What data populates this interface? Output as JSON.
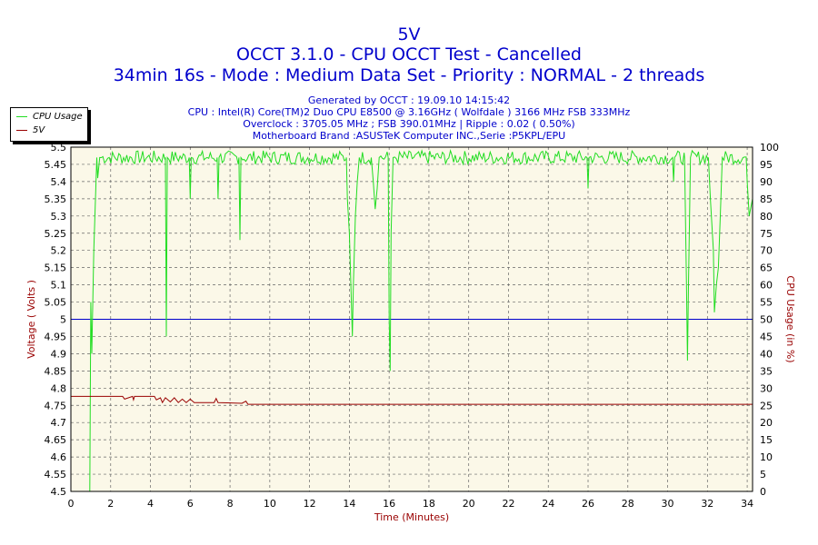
{
  "header": {
    "title": "5V",
    "subtitle": "OCCT 3.1.0 - CPU OCCT Test - Cancelled",
    "subtitle2": "34min 16s - Mode : Medium Data Set - Priority : NORMAL - 2 threads"
  },
  "info": {
    "line1": "Generated by OCCT : 19.09.10 14:15:42",
    "line2": "CPU : Intel(R) Core(TM)2 Duo CPU E8500 @ 3.16GHz ( Wolfdale ) 3166 MHz FSB 333MHz",
    "line3": "Overclock : 3705.05 MHz ; FSB 390.01MHz | Ripple : 0.02 ( 0.50%)",
    "line4": "Motherboard Brand :ASUSTeK Computer INC.,Serie :P5KPL/EPU"
  },
  "legend": [
    {
      "label": "CPU Usage",
      "color": "#22dd22"
    },
    {
      "label": "5V",
      "color": "#990000"
    }
  ],
  "chart_data": {
    "type": "line",
    "title": "5V",
    "xlabel": "Time (Minutes)",
    "ylabel": "Voltage ( Volts )",
    "y2label": "CPU Usage (in %)",
    "xlim": [
      0,
      34.27
    ],
    "ylim": [
      4.5,
      5.5
    ],
    "y2lim": [
      0,
      100
    ],
    "grid": true,
    "legend_position": "top-left",
    "background": "#fbf8e8",
    "x_ticks": [
      "0",
      "2",
      "4",
      "6",
      "8",
      "10",
      "12",
      "14",
      "16",
      "18",
      "20",
      "22",
      "24",
      "26",
      "28",
      "30",
      "32",
      "34"
    ],
    "y_ticks": [
      "4.5",
      "4.55",
      "4.6",
      "4.65",
      "4.7",
      "4.75",
      "4.8",
      "4.85",
      "4.9",
      "4.95",
      "5",
      "5.05",
      "5.1",
      "5.15",
      "5.2",
      "5.25",
      "5.3",
      "5.35",
      "5.4",
      "5.45",
      "5.5"
    ],
    "y2_ticks": [
      "0",
      "5",
      "10",
      "15",
      "20",
      "25",
      "30",
      "35",
      "40",
      "45",
      "50",
      "55",
      "60",
      "65",
      "70",
      "75",
      "80",
      "85",
      "90",
      "95",
      "100"
    ],
    "reference_line": {
      "y": 5.0,
      "color": "#0000cc"
    },
    "series": [
      {
        "name": "CPU Usage",
        "axis": "right",
        "color": "#22dd22",
        "base": 97,
        "points": [
          [
            0.95,
            0
          ],
          [
            1.0,
            55
          ],
          [
            1.05,
            40
          ],
          [
            1.15,
            70
          ],
          [
            1.3,
            97
          ],
          [
            1.35,
            91
          ],
          [
            1.45,
            97
          ],
          [
            4.75,
            97
          ],
          [
            4.8,
            45
          ],
          [
            4.85,
            97
          ],
          [
            5.95,
            97
          ],
          [
            6.0,
            85
          ],
          [
            6.05,
            97
          ],
          [
            7.35,
            97
          ],
          [
            7.4,
            85
          ],
          [
            7.45,
            97
          ],
          [
            8.45,
            97
          ],
          [
            8.5,
            73
          ],
          [
            8.55,
            97
          ],
          [
            13.85,
            97
          ],
          [
            13.9,
            85
          ],
          [
            14.0,
            75
          ],
          [
            14.1,
            55
          ],
          [
            14.15,
            45
          ],
          [
            14.2,
            60
          ],
          [
            14.3,
            80
          ],
          [
            14.4,
            90
          ],
          [
            14.5,
            97
          ],
          [
            15.1,
            97
          ],
          [
            15.2,
            90
          ],
          [
            15.3,
            82
          ],
          [
            15.4,
            88
          ],
          [
            15.5,
            97
          ],
          [
            15.95,
            97
          ],
          [
            16.0,
            50
          ],
          [
            16.05,
            35
          ],
          [
            16.1,
            75
          ],
          [
            16.2,
            97
          ],
          [
            25.95,
            97
          ],
          [
            26.0,
            88
          ],
          [
            26.05,
            97
          ],
          [
            30.25,
            97
          ],
          [
            30.3,
            90
          ],
          [
            30.35,
            97
          ],
          [
            30.85,
            97
          ],
          [
            30.95,
            60
          ],
          [
            31.0,
            38
          ],
          [
            31.05,
            60
          ],
          [
            31.15,
            97
          ],
          [
            32.05,
            97
          ],
          [
            32.15,
            85
          ],
          [
            32.3,
            70
          ],
          [
            32.35,
            52
          ],
          [
            32.45,
            60
          ],
          [
            32.55,
            65
          ],
          [
            32.65,
            80
          ],
          [
            32.75,
            97
          ],
          [
            33.95,
            97
          ],
          [
            34.0,
            90
          ],
          [
            34.1,
            80
          ],
          [
            34.27,
            85
          ]
        ]
      },
      {
        "name": "5V",
        "axis": "left",
        "color": "#990000",
        "points": [
          [
            0.0,
            4.776
          ],
          [
            2.6,
            4.776
          ],
          [
            2.7,
            4.768
          ],
          [
            3.1,
            4.776
          ],
          [
            3.15,
            4.766
          ],
          [
            3.2,
            4.776
          ],
          [
            4.2,
            4.776
          ],
          [
            4.3,
            4.766
          ],
          [
            4.5,
            4.772
          ],
          [
            4.6,
            4.758
          ],
          [
            4.75,
            4.772
          ],
          [
            5.0,
            4.76
          ],
          [
            5.2,
            4.772
          ],
          [
            5.4,
            4.758
          ],
          [
            5.6,
            4.768
          ],
          [
            5.8,
            4.758
          ],
          [
            6.0,
            4.768
          ],
          [
            6.2,
            4.758
          ],
          [
            6.5,
            4.758
          ],
          [
            7.0,
            4.758
          ],
          [
            7.2,
            4.758
          ],
          [
            7.3,
            4.77
          ],
          [
            7.4,
            4.758
          ],
          [
            8.6,
            4.756
          ],
          [
            8.8,
            4.762
          ],
          [
            8.9,
            4.753
          ],
          [
            34.27,
            4.753
          ]
        ]
      }
    ]
  }
}
